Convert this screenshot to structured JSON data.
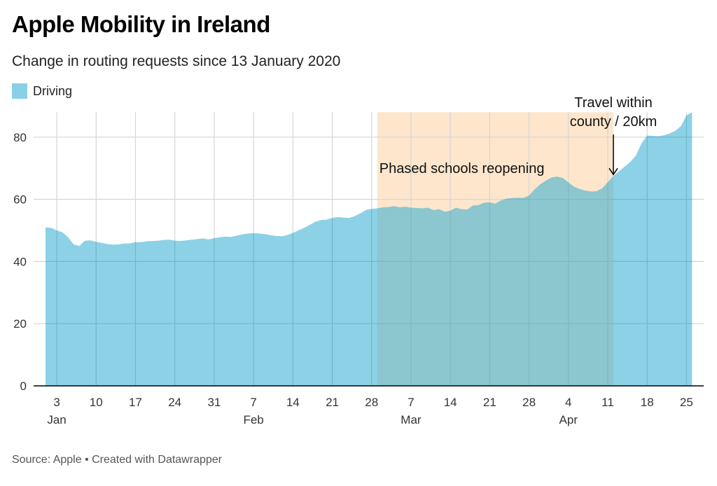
{
  "header": {
    "title": "Apple Mobility in Ireland",
    "subtitle": "Change in routing requests since 13 January 2020",
    "legend_label": "Driving"
  },
  "footer": {
    "source": "Source: Apple • Created with Datawrapper"
  },
  "colors": {
    "area": "#89cfe5",
    "shade": "#fde6cc",
    "overlap": "#8cc4cc",
    "grid": "#d6d6d6",
    "axis": "#000000"
  },
  "chart_data": {
    "type": "area",
    "title": "Apple Mobility in Ireland",
    "subtitle": "Change in routing requests since 13 January 2020",
    "xlabel": "",
    "ylabel": "",
    "ylim": [
      0,
      88
    ],
    "yticks": [
      0,
      20,
      40,
      60,
      80
    ],
    "grid": true,
    "legend": {
      "position": "top-left",
      "entries": [
        "Driving"
      ]
    },
    "x_start": "2021-01-01",
    "x_end": "2021-04-26",
    "xticks": [
      {
        "day": 2,
        "label": "3",
        "month": "Jan"
      },
      {
        "day": 9,
        "label": "10",
        "month": ""
      },
      {
        "day": 16,
        "label": "17",
        "month": ""
      },
      {
        "day": 23,
        "label": "24",
        "month": ""
      },
      {
        "day": 30,
        "label": "31",
        "month": ""
      },
      {
        "day": 37,
        "label": "7",
        "month": "Feb"
      },
      {
        "day": 44,
        "label": "14",
        "month": ""
      },
      {
        "day": 51,
        "label": "21",
        "month": ""
      },
      {
        "day": 58,
        "label": "28",
        "month": ""
      },
      {
        "day": 65,
        "label": "7",
        "month": "Mar"
      },
      {
        "day": 72,
        "label": "14",
        "month": ""
      },
      {
        "day": 79,
        "label": "21",
        "month": ""
      },
      {
        "day": 86,
        "label": "28",
        "month": ""
      },
      {
        "day": 93,
        "label": "4",
        "month": "Apr"
      },
      {
        "day": 100,
        "label": "11",
        "month": ""
      },
      {
        "day": 107,
        "label": "18",
        "month": ""
      },
      {
        "day": 114,
        "label": "25",
        "month": ""
      }
    ],
    "series": [
      {
        "name": "Driving",
        "x_days": [
          0,
          1,
          2,
          3,
          4,
          5,
          6,
          7,
          8,
          9,
          10,
          11,
          12,
          13,
          14,
          15,
          16,
          17,
          18,
          19,
          20,
          21,
          22,
          23,
          24,
          25,
          26,
          27,
          28,
          29,
          30,
          31,
          32,
          33,
          34,
          35,
          36,
          37,
          38,
          39,
          40,
          41,
          42,
          43,
          44,
          45,
          46,
          47,
          48,
          49,
          50,
          51,
          52,
          53,
          54,
          55,
          56,
          57,
          58,
          59,
          60,
          61,
          62,
          63,
          64,
          65,
          66,
          67,
          68,
          69,
          70,
          71,
          72,
          73,
          74,
          75,
          76,
          77,
          78,
          79,
          80,
          81,
          82,
          83,
          84,
          85,
          86,
          87,
          88,
          89,
          90,
          91,
          92,
          93,
          94,
          95,
          96,
          97,
          98,
          99,
          100,
          101,
          102,
          103,
          104,
          105,
          106,
          107,
          108,
          109,
          110,
          111,
          112,
          113,
          114,
          115
        ],
        "values": [
          51,
          50.8,
          50,
          49.4,
          47.8,
          45.5,
          45,
          46.7,
          46.8,
          46.3,
          46,
          45.6,
          45.4,
          45.5,
          45.8,
          45.8,
          46.2,
          46.2,
          46.5,
          46.6,
          46.7,
          46.9,
          47,
          46.7,
          46.6,
          46.8,
          47,
          47.2,
          47.4,
          47.1,
          47.5,
          47.8,
          48,
          47.9,
          48.3,
          48.7,
          49,
          49.1,
          49,
          48.8,
          48.5,
          48.2,
          48.1,
          48.5,
          49.2,
          50,
          50.8,
          51.8,
          52.8,
          53.3,
          53.5,
          54,
          54.3,
          54.1,
          54,
          54.6,
          55.5,
          56.6,
          56.9,
          57.1,
          57.4,
          57.5,
          57.8,
          57.4,
          57.6,
          57.3,
          57.2,
          57.1,
          57.3,
          56.5,
          56.8,
          56.0,
          56.3,
          57.3,
          56.8,
          56.7,
          58,
          58.1,
          58.9,
          59,
          58.6,
          59.6,
          60.2,
          60.4,
          60.5,
          60.4,
          61.2,
          63.2,
          64.8,
          66,
          67,
          67.3,
          66.8,
          65.4,
          64,
          63.3,
          62.8,
          62.5,
          62.6,
          63.5,
          65.5,
          67.5,
          69,
          70.5,
          72,
          74,
          78,
          80.5,
          80.4,
          80.3,
          80.6,
          81.2,
          82,
          83.5,
          87,
          88
        ]
      }
    ],
    "annotations": [
      {
        "type": "range",
        "label": "Phased schools reopening",
        "from_day": 59,
        "to_day": 101
      },
      {
        "type": "arrow",
        "label_line1": "Travel within",
        "label_line2": "county / 20km",
        "day": 101,
        "value": 67.5
      }
    ]
  }
}
